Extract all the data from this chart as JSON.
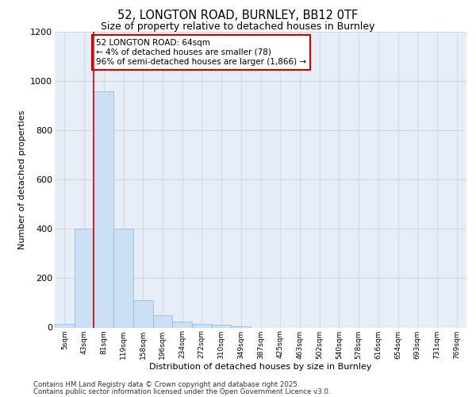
{
  "title_line1": "52, LONGTON ROAD, BURNLEY, BB12 0TF",
  "title_line2": "Size of property relative to detached houses in Burnley",
  "xlabel": "Distribution of detached houses by size in Burnley",
  "ylabel": "Number of detached properties",
  "categories": [
    "5sqm",
    "43sqm",
    "81sqm",
    "119sqm",
    "158sqm",
    "196sqm",
    "234sqm",
    "272sqm",
    "310sqm",
    "349sqm",
    "387sqm",
    "425sqm",
    "463sqm",
    "502sqm",
    "540sqm",
    "578sqm",
    "616sqm",
    "654sqm",
    "693sqm",
    "731sqm",
    "769sqm"
  ],
  "values": [
    15,
    400,
    960,
    400,
    110,
    50,
    25,
    15,
    10,
    5,
    0,
    0,
    0,
    0,
    0,
    0,
    0,
    0,
    0,
    0,
    0
  ],
  "bar_color": "#cce0f5",
  "bar_edge_color": "#8ab4d8",
  "ylim": [
    0,
    1200
  ],
  "yticks": [
    0,
    200,
    400,
    600,
    800,
    1000,
    1200
  ],
  "property_line_x": 1.5,
  "annotation_text": "52 LONGTON ROAD: 64sqm\n← 4% of detached houses are smaller (78)\n96% of semi-detached houses are larger (1,866) →",
  "annotation_box_color": "#ffffff",
  "annotation_box_edge": "#cc0000",
  "line_color": "#cc0000",
  "bg_color": "#e8eef8",
  "footer_line1": "Contains HM Land Registry data © Crown copyright and database right 2025.",
  "footer_line2": "Contains public sector information licensed under the Open Government Licence v3.0."
}
